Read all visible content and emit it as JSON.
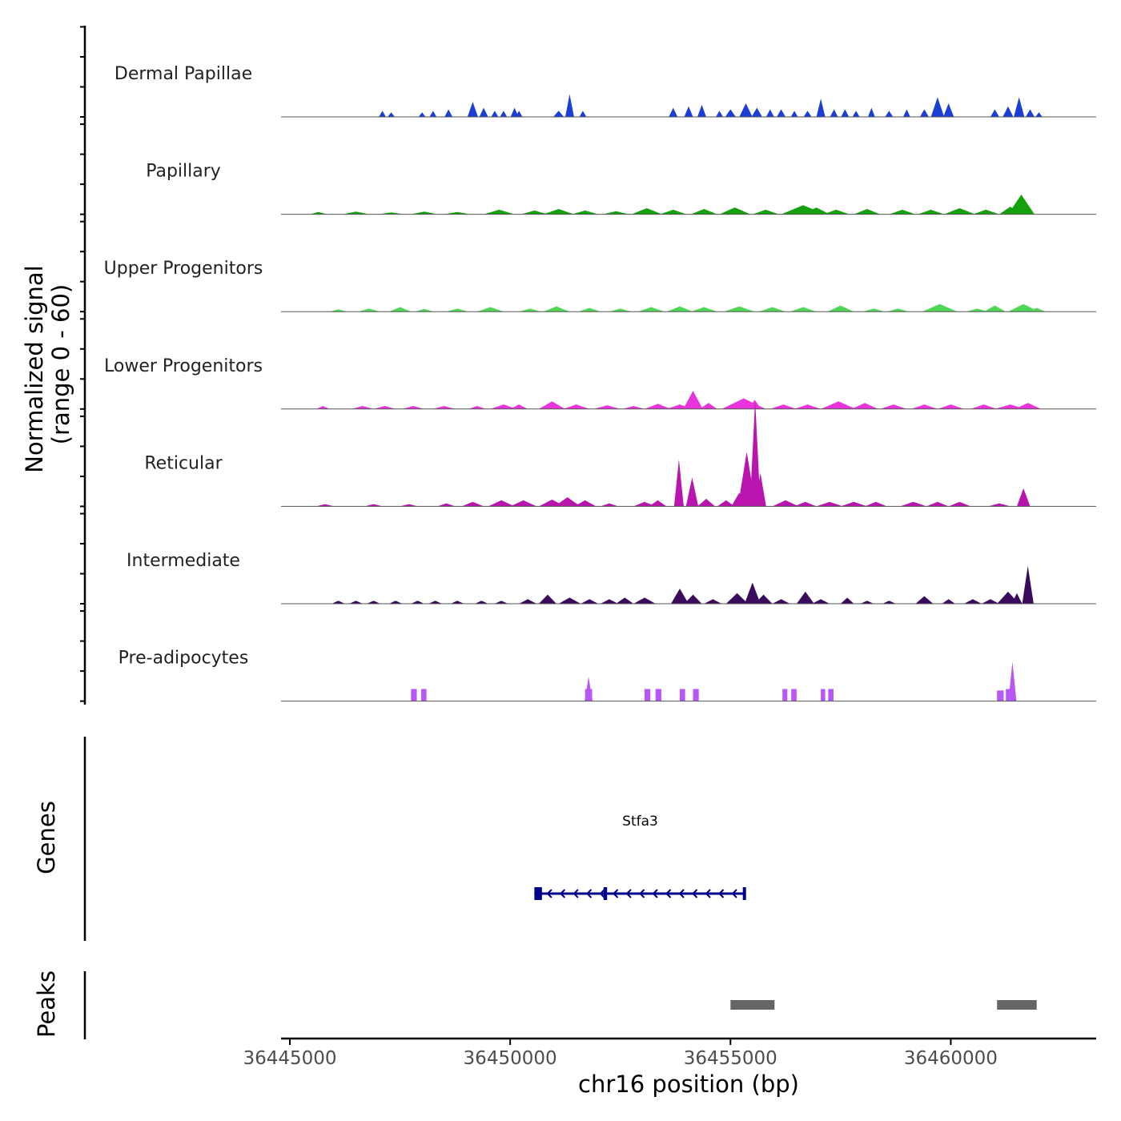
{
  "chart_data": {
    "type": "area",
    "subtype": "genome-coverage-track",
    "chromosome": "chr16",
    "xlim": [
      36444800,
      36463300
    ],
    "x_ticks": [
      36445000,
      36450000,
      36455000,
      36460000
    ],
    "x_tick_labels": [
      "36445000",
      "36450000",
      "36455000",
      "36460000"
    ],
    "xlabel": "chr16 position (bp)",
    "coverage_ylabel_line1": "Normalized signal",
    "coverage_ylabel_line2": "(range 0 - 60)",
    "ylim": [
      0,
      60
    ],
    "genes_ylabel": "Genes",
    "peaks_ylabel": "Peaks",
    "tracks": [
      {
        "name": "Dermal Papillae",
        "color": "#1b3fd6",
        "peaks": [
          [
            36447100,
            80,
            4
          ],
          [
            36447300,
            80,
            3
          ],
          [
            36448000,
            80,
            3
          ],
          [
            36448250,
            80,
            4
          ],
          [
            36448600,
            90,
            5
          ],
          [
            36449150,
            120,
            10
          ],
          [
            36449400,
            100,
            6
          ],
          [
            36449650,
            80,
            4
          ],
          [
            36449850,
            80,
            4
          ],
          [
            36450100,
            90,
            6
          ],
          [
            36450200,
            80,
            4
          ],
          [
            36451100,
            120,
            4
          ],
          [
            36451350,
            100,
            15
          ],
          [
            36451650,
            80,
            4
          ],
          [
            36453700,
            100,
            6
          ],
          [
            36454050,
            100,
            7
          ],
          [
            36454350,
            100,
            8
          ],
          [
            36454750,
            80,
            4
          ],
          [
            36455000,
            120,
            5
          ],
          [
            36455350,
            150,
            9
          ],
          [
            36455600,
            120,
            6
          ],
          [
            36455900,
            90,
            5
          ],
          [
            36456150,
            100,
            5
          ],
          [
            36456450,
            80,
            4
          ],
          [
            36456750,
            90,
            4
          ],
          [
            36457050,
            100,
            12
          ],
          [
            36457350,
            90,
            5
          ],
          [
            36457600,
            90,
            5
          ],
          [
            36457850,
            80,
            4
          ],
          [
            36458200,
            80,
            6
          ],
          [
            36458600,
            90,
            4
          ],
          [
            36459000,
            80,
            5
          ],
          [
            36459400,
            100,
            5
          ],
          [
            36459700,
            150,
            13
          ],
          [
            36459950,
            120,
            9
          ],
          [
            36461000,
            100,
            5
          ],
          [
            36461300,
            120,
            7
          ],
          [
            36461550,
            120,
            13
          ],
          [
            36461800,
            100,
            5
          ],
          [
            36462000,
            80,
            3
          ]
        ]
      },
      {
        "name": "Papillary",
        "color": "#15a00e",
        "peaks": [
          [
            36445650,
            200,
            1.5
          ],
          [
            36446500,
            300,
            1.8
          ],
          [
            36447300,
            300,
            1.2
          ],
          [
            36448050,
            300,
            1.8
          ],
          [
            36448800,
            300,
            1.5
          ],
          [
            36449750,
            350,
            3
          ],
          [
            36450550,
            300,
            2.5
          ],
          [
            36451100,
            350,
            3.5
          ],
          [
            36451700,
            300,
            2.5
          ],
          [
            36452400,
            300,
            2
          ],
          [
            36453100,
            350,
            4
          ],
          [
            36453700,
            300,
            3
          ],
          [
            36454400,
            300,
            3.5
          ],
          [
            36455100,
            350,
            4.5
          ],
          [
            36455800,
            300,
            3
          ],
          [
            36456650,
            500,
            6
          ],
          [
            36456950,
            300,
            4.5
          ],
          [
            36457400,
            300,
            3
          ],
          [
            36458100,
            300,
            3.5
          ],
          [
            36458900,
            300,
            3
          ],
          [
            36459550,
            300,
            3
          ],
          [
            36460200,
            350,
            4
          ],
          [
            36460800,
            300,
            3
          ],
          [
            36461350,
            250,
            5
          ],
          [
            36461600,
            300,
            13
          ]
        ]
      },
      {
        "name": "Upper Progenitors",
        "color": "#4fd657",
        "peaks": [
          [
            36446100,
            200,
            1.5
          ],
          [
            36446800,
            250,
            2
          ],
          [
            36447500,
            250,
            3
          ],
          [
            36448050,
            200,
            1.8
          ],
          [
            36448800,
            250,
            2
          ],
          [
            36449550,
            300,
            3
          ],
          [
            36450450,
            250,
            2
          ],
          [
            36451050,
            300,
            3.5
          ],
          [
            36451800,
            250,
            2.5
          ],
          [
            36452500,
            250,
            2
          ],
          [
            36453200,
            300,
            3
          ],
          [
            36453850,
            300,
            3.5
          ],
          [
            36454400,
            300,
            3
          ],
          [
            36455200,
            350,
            3.5
          ],
          [
            36455950,
            300,
            3
          ],
          [
            36456650,
            300,
            3
          ],
          [
            36457500,
            300,
            4
          ],
          [
            36458250,
            250,
            2
          ],
          [
            36458800,
            250,
            2
          ],
          [
            36459750,
            400,
            5
          ],
          [
            36460600,
            250,
            2
          ],
          [
            36461000,
            250,
            4
          ],
          [
            36461650,
            350,
            5
          ],
          [
            36461950,
            200,
            2.5
          ]
        ]
      },
      {
        "name": "Lower Progenitors",
        "color": "#e832dc",
        "peaks": [
          [
            36445750,
            150,
            2
          ],
          [
            36446650,
            250,
            2
          ],
          [
            36447150,
            250,
            2
          ],
          [
            36447800,
            250,
            2
          ],
          [
            36448500,
            250,
            2
          ],
          [
            36449250,
            200,
            2
          ],
          [
            36449850,
            300,
            3
          ],
          [
            36450200,
            200,
            3
          ],
          [
            36450950,
            300,
            5
          ],
          [
            36451500,
            300,
            3
          ],
          [
            36452200,
            300,
            2.5
          ],
          [
            36452800,
            250,
            2
          ],
          [
            36453350,
            300,
            3.5
          ],
          [
            36453850,
            300,
            3
          ],
          [
            36454150,
            220,
            12
          ],
          [
            36454500,
            200,
            4
          ],
          [
            36455300,
            500,
            7
          ],
          [
            36455550,
            150,
            6
          ],
          [
            36456200,
            300,
            3
          ],
          [
            36456750,
            300,
            3
          ],
          [
            36457450,
            400,
            5
          ],
          [
            36458050,
            300,
            4
          ],
          [
            36458700,
            300,
            3
          ],
          [
            36459400,
            300,
            3
          ],
          [
            36460000,
            300,
            3
          ],
          [
            36460750,
            300,
            3
          ],
          [
            36461350,
            350,
            3
          ],
          [
            36461750,
            300,
            4
          ]
        ]
      },
      {
        "name": "Reticular",
        "color": "#b915ae",
        "peaks": [
          [
            36445800,
            200,
            1.5
          ],
          [
            36446900,
            200,
            1.5
          ],
          [
            36447700,
            200,
            1.5
          ],
          [
            36448550,
            200,
            2
          ],
          [
            36449150,
            250,
            3
          ],
          [
            36449800,
            300,
            4
          ],
          [
            36450300,
            300,
            4
          ],
          [
            36450950,
            300,
            4.5
          ],
          [
            36451300,
            300,
            6
          ],
          [
            36451700,
            250,
            4
          ],
          [
            36452250,
            200,
            2
          ],
          [
            36453050,
            250,
            3
          ],
          [
            36453350,
            200,
            4
          ],
          [
            36453830,
            110,
            31
          ],
          [
            36454130,
            140,
            19
          ],
          [
            36454450,
            200,
            5
          ],
          [
            36454900,
            200,
            4
          ],
          [
            36455200,
            180,
            9
          ],
          [
            36455370,
            200,
            36
          ],
          [
            36455560,
            120,
            70
          ],
          [
            36455680,
            130,
            22
          ],
          [
            36456250,
            300,
            4
          ],
          [
            36456700,
            250,
            3
          ],
          [
            36457250,
            300,
            3
          ],
          [
            36457800,
            300,
            3
          ],
          [
            36458300,
            250,
            3
          ],
          [
            36459150,
            300,
            3
          ],
          [
            36459700,
            250,
            3
          ],
          [
            36460200,
            250,
            3
          ],
          [
            36461100,
            250,
            2
          ],
          [
            36461650,
            150,
            12
          ]
        ]
      },
      {
        "name": "Intermediate",
        "color": "#3a0a5c",
        "peaks": [
          [
            36446100,
            150,
            2
          ],
          [
            36446500,
            150,
            2
          ],
          [
            36446900,
            150,
            2
          ],
          [
            36447400,
            150,
            2
          ],
          [
            36447900,
            150,
            2
          ],
          [
            36448300,
            150,
            2
          ],
          [
            36448800,
            150,
            2
          ],
          [
            36449350,
            150,
            2
          ],
          [
            36449800,
            150,
            2
          ],
          [
            36450400,
            200,
            3
          ],
          [
            36450850,
            200,
            6
          ],
          [
            36451350,
            250,
            4
          ],
          [
            36451800,
            200,
            3
          ],
          [
            36452250,
            200,
            3
          ],
          [
            36452600,
            200,
            4
          ],
          [
            36453050,
            250,
            4
          ],
          [
            36453850,
            200,
            10
          ],
          [
            36454150,
            200,
            6
          ],
          [
            36454600,
            200,
            3
          ],
          [
            36455150,
            250,
            7
          ],
          [
            36455500,
            180,
            14
          ],
          [
            36455750,
            200,
            6
          ],
          [
            36456700,
            200,
            8
          ],
          [
            36456150,
            200,
            3
          ],
          [
            36457050,
            200,
            3
          ],
          [
            36457650,
            150,
            4
          ],
          [
            36458100,
            150,
            2
          ],
          [
            36458600,
            150,
            2
          ],
          [
            36459400,
            200,
            5
          ],
          [
            36459950,
            150,
            3
          ],
          [
            36460500,
            200,
            3
          ],
          [
            36460900,
            200,
            3
          ],
          [
            36461300,
            250,
            8
          ],
          [
            36461750,
            130,
            25
          ],
          [
            36461500,
            120,
            7
          ]
        ]
      },
      {
        "name": "Pre-adipocytes",
        "color": "#b856f7",
        "blocks": [
          [
            36447750,
            36447880,
            8
          ],
          [
            36447980,
            36448100,
            8
          ],
          [
            36451700,
            36451860,
            8
          ],
          [
            36453050,
            36453180,
            8
          ],
          [
            36453300,
            36453430,
            8
          ],
          [
            36453850,
            36453970,
            8
          ],
          [
            36454150,
            36454280,
            8
          ],
          [
            36456180,
            36456290,
            8
          ],
          [
            36456380,
            36456500,
            8
          ],
          [
            36457050,
            36457150,
            8
          ],
          [
            36457220,
            36457340,
            8
          ],
          [
            36461050,
            36461200,
            7
          ],
          [
            36461250,
            36461450,
            8
          ]
        ],
        "spikes": [
          [
            36451780,
            16
          ],
          [
            36461400,
            26
          ]
        ]
      }
    ],
    "gene": {
      "name": "Stfa3",
      "start": 36450550,
      "end": 36455350,
      "strand": "-",
      "color": "#00008b",
      "exons": [
        [
          36450550,
          36450720
        ],
        [
          36452120,
          36452200
        ],
        [
          36455280,
          36455350
        ]
      ]
    },
    "peaks": [
      [
        36455000,
        36456000
      ],
      [
        36461050,
        36461950
      ]
    ],
    "peak_color": "#666666"
  }
}
